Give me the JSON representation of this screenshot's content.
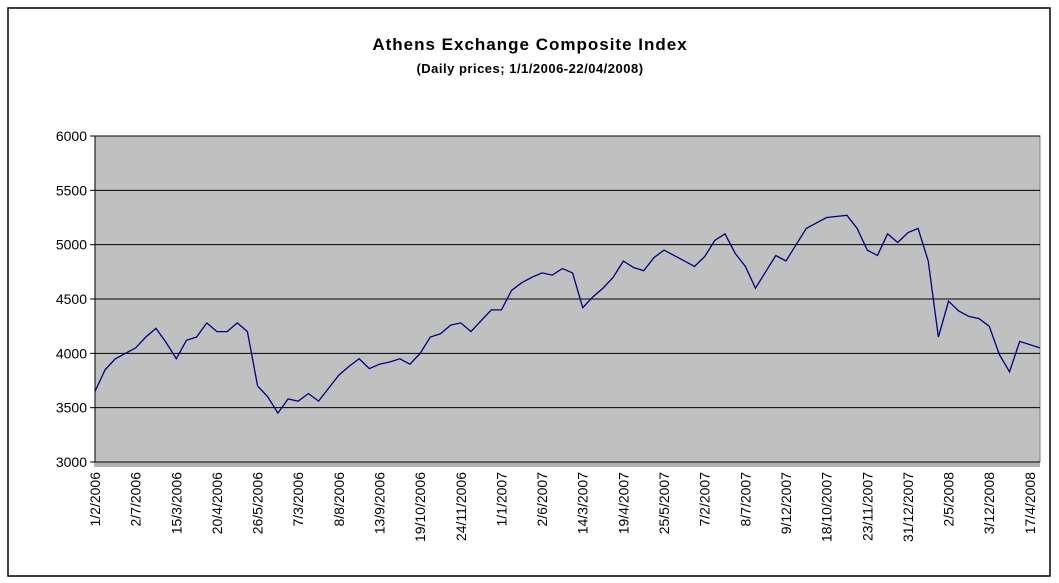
{
  "chart_data": {
    "type": "line",
    "title": "Athens Exchange Composite Index",
    "subtitle": "(Daily prices; 1/1/2006-22/04/2008)",
    "categories": [
      "1/2/2006",
      null,
      null,
      null,
      "2/7/2006",
      null,
      null,
      null,
      "15/3/2006",
      null,
      null,
      null,
      "20/4/2006",
      null,
      null,
      null,
      "26/5/2006",
      null,
      null,
      null,
      "7/3/2006",
      null,
      null,
      null,
      "8/8/2006",
      null,
      null,
      null,
      "13/9/2006",
      null,
      null,
      null,
      "19/10/2006",
      null,
      null,
      null,
      "24/11/2006",
      null,
      null,
      null,
      "1/1/2007",
      null,
      null,
      null,
      "2/6/2007",
      null,
      null,
      null,
      "14/3/2007",
      null,
      null,
      null,
      "19/4/2007",
      null,
      null,
      null,
      "25/5/2007",
      null,
      null,
      null,
      "7/2/2007",
      null,
      null,
      null,
      "8/7/2007",
      null,
      null,
      null,
      "9/12/2007",
      null,
      null,
      null,
      "18/10/2007",
      null,
      null,
      null,
      "23/11/2007",
      null,
      null,
      null,
      "31/12/2007",
      null,
      null,
      null,
      "2/5/2008",
      null,
      null,
      null,
      "3/12/2008",
      null,
      null,
      null,
      "17/4/2008",
      null
    ],
    "series": [
      {
        "name": "Athens Exchange Composite Index",
        "color": "#000080",
        "values": [
          3650,
          3850,
          3950,
          4000,
          4050,
          4150,
          4230,
          4100,
          3950,
          4120,
          4150,
          4280,
          4200,
          4200,
          4280,
          4200,
          3700,
          3600,
          3450,
          3580,
          3560,
          3630,
          3560,
          3680,
          3800,
          3880,
          3950,
          3860,
          3900,
          3920,
          3950,
          3900,
          4000,
          4150,
          4180,
          4260,
          4280,
          4200,
          4300,
          4400,
          4400,
          4580,
          4650,
          4700,
          4740,
          4720,
          4780,
          4740,
          4420,
          4520,
          4600,
          4700,
          4850,
          4790,
          4760,
          4880,
          4950,
          4900,
          4850,
          4800,
          4890,
          5040,
          5100,
          4920,
          4800,
          4600,
          4750,
          4900,
          4850,
          5000,
          5150,
          5200,
          5250,
          5260,
          5270,
          5150,
          4950,
          4900,
          5100,
          5020,
          5110,
          5150,
          4850,
          4150,
          4480,
          4390,
          4340,
          4320,
          4250,
          3990,
          3830,
          4110,
          4080,
          4050
        ]
      }
    ],
    "ylim": [
      3000,
      6000
    ],
    "yticks": [
      3000,
      3500,
      4000,
      4500,
      5000,
      5500,
      6000
    ],
    "grid": true,
    "plot_background": "#c0c0c0"
  }
}
